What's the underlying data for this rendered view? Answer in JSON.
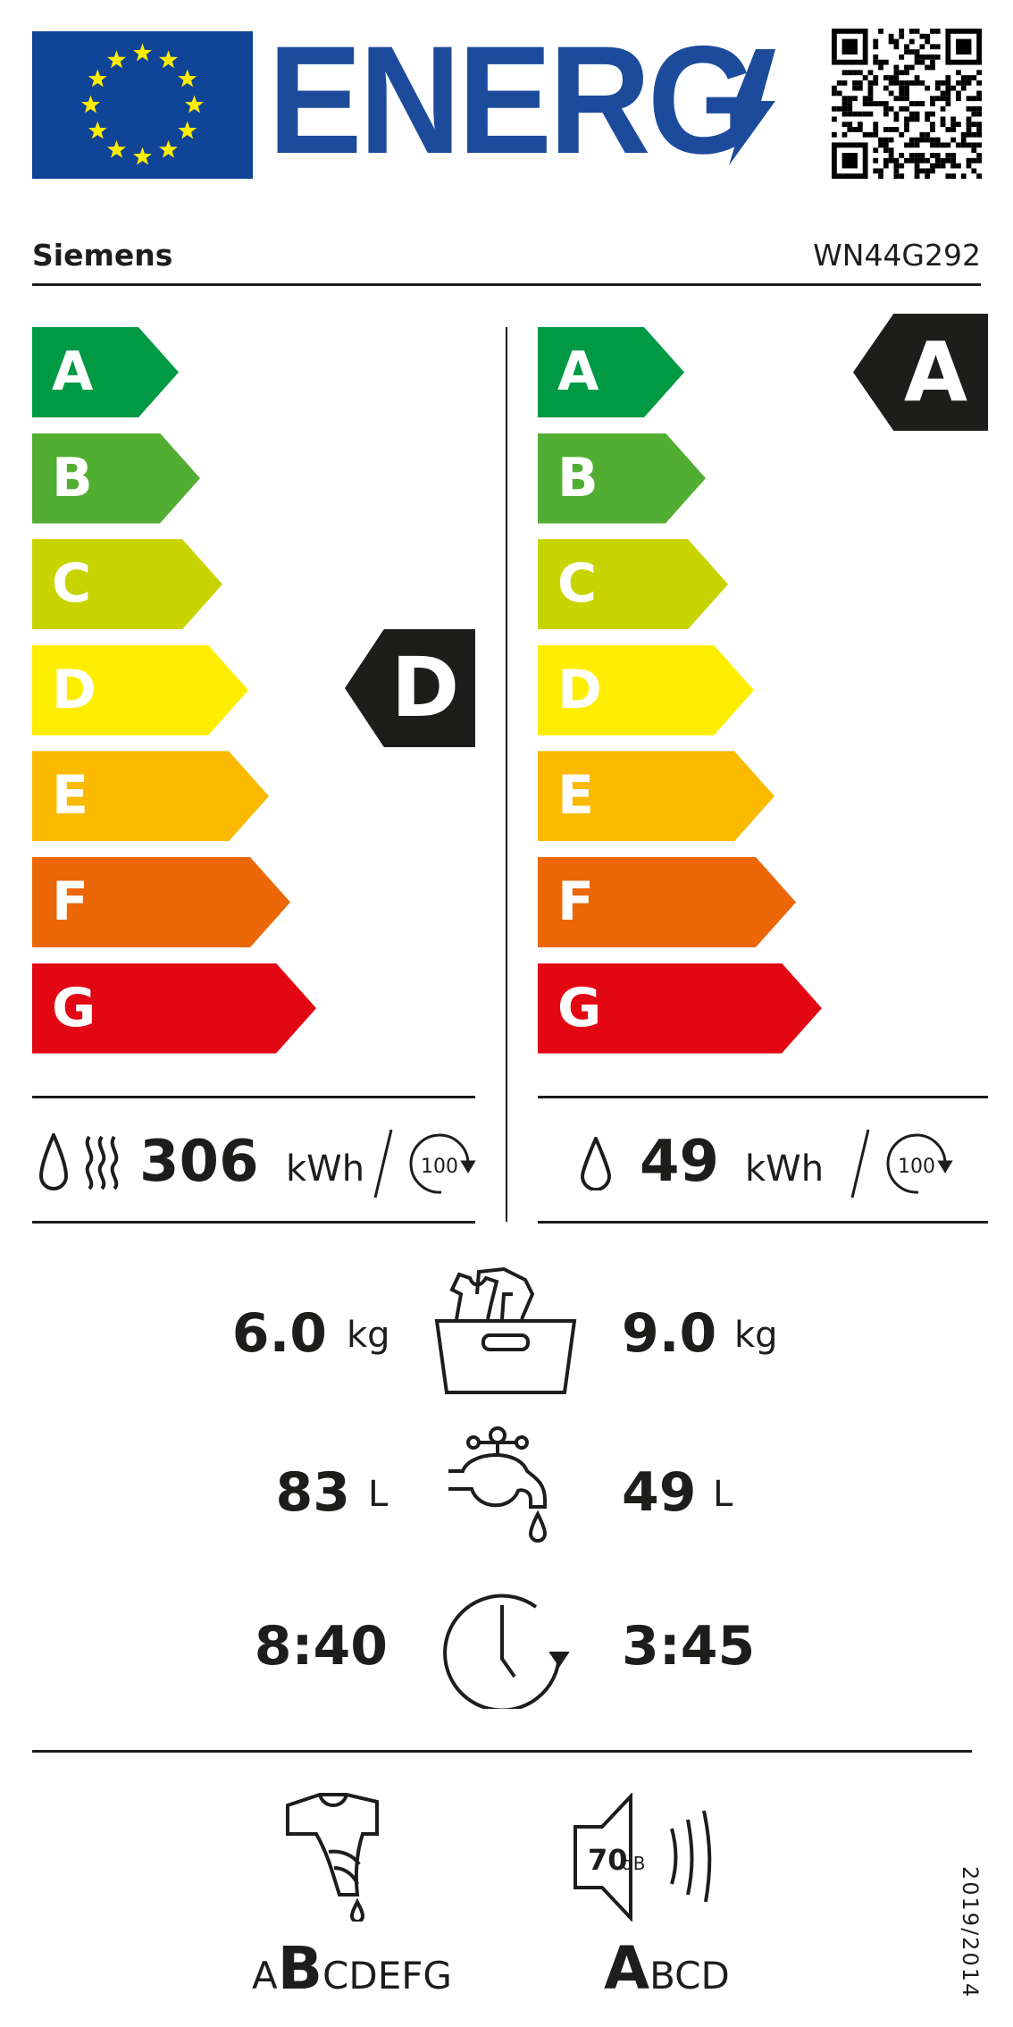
{
  "header": {
    "logo_text": "ENERG",
    "brand": "Siemens",
    "model": "WN44G292"
  },
  "colors": {
    "eu_blue": "#0f4496",
    "star_yellow": "#ffed00",
    "A": "#009a44",
    "B": "#52ae32",
    "C": "#c8d400",
    "D": "#ffed00",
    "E": "#fbba00",
    "F": "#ec6707",
    "G": "#e30613"
  },
  "scale_classes": [
    "A",
    "B",
    "C",
    "D",
    "E",
    "F",
    "G"
  ],
  "wash_dry": {
    "energy_class": "D",
    "energy_value": "306",
    "energy_unit": "kWh",
    "cycles": "100",
    "capacity": "6.0",
    "capacity_unit": "kg",
    "water": "83",
    "water_unit": "L",
    "duration": "8:40"
  },
  "wash": {
    "energy_class": "A",
    "energy_value": "49",
    "energy_unit": "kWh",
    "cycles": "100",
    "capacity": "9.0",
    "capacity_unit": "kg",
    "water": "49",
    "water_unit": "L",
    "duration": "3:45"
  },
  "spin": {
    "prefix": "A",
    "selected": "B",
    "suffix": "CDEFG"
  },
  "noise": {
    "value": "70",
    "unit": "dB",
    "selected": "A",
    "suffix": "BCD"
  },
  "regulation": "2019/2014"
}
